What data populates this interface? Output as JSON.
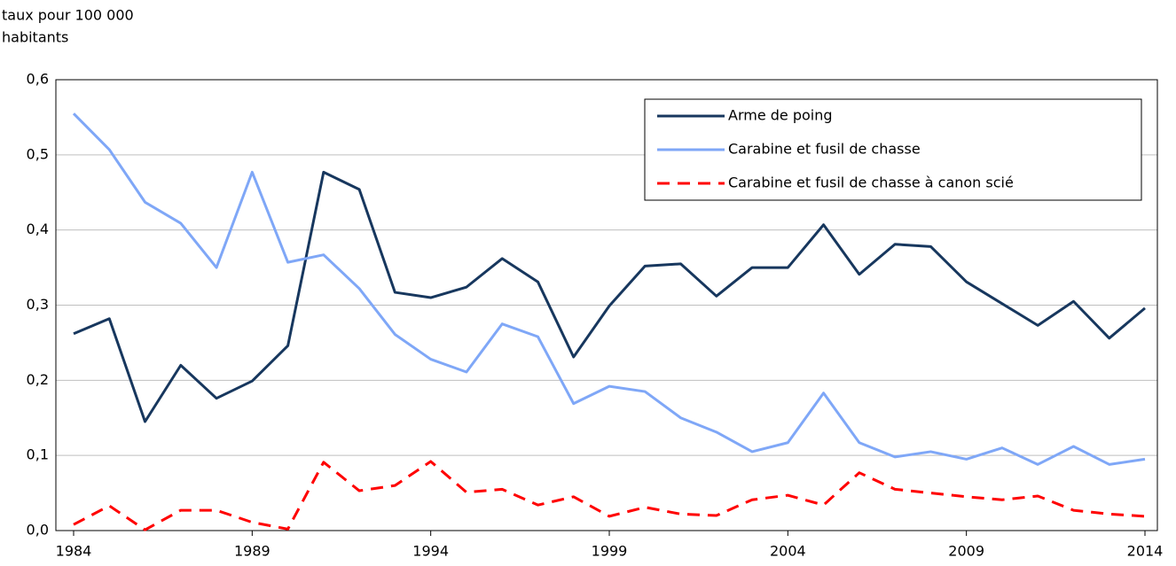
{
  "chart_data": {
    "type": "line",
    "ylabel": [
      "taux pour 100 000",
      "habitants"
    ],
    "x": [
      1984,
      1985,
      1986,
      1987,
      1988,
      1989,
      1990,
      1991,
      1992,
      1993,
      1994,
      1995,
      1996,
      1997,
      1998,
      1999,
      2000,
      2001,
      2002,
      2003,
      2004,
      2005,
      2006,
      2007,
      2008,
      2009,
      2010,
      2011,
      2012,
      2013,
      2014
    ],
    "xlim": [
      1984,
      2014
    ],
    "xticks": [
      1984,
      1989,
      1994,
      1999,
      2004,
      2009,
      2014
    ],
    "ylim": [
      0,
      0.6
    ],
    "yticks": [
      {
        "value": 0,
        "label": "0,0"
      },
      {
        "value": 0.1,
        "label": "0,1"
      },
      {
        "value": 0.2,
        "label": "0,2"
      },
      {
        "value": 0.3,
        "label": "0,3"
      },
      {
        "value": 0.4,
        "label": "0,4"
      },
      {
        "value": 0.5,
        "label": "0,5"
      },
      {
        "value": 0.6,
        "label": "0,6"
      }
    ],
    "grid": true,
    "legend": "top-right",
    "series": [
      {
        "name": "Arme de poing",
        "color": "#17375e",
        "style": "solid",
        "values": [
          0.262,
          0.282,
          0.145,
          0.22,
          0.176,
          0.199,
          0.246,
          0.477,
          0.454,
          0.317,
          0.31,
          0.324,
          0.362,
          0.331,
          0.231,
          0.299,
          0.352,
          0.355,
          0.312,
          0.35,
          0.35,
          0.407,
          0.341,
          0.381,
          0.378,
          0.331,
          0.302,
          0.273,
          0.305,
          0.256,
          0.296
        ]
      },
      {
        "name": "Carabine et fusil de chasse",
        "color": "#7fa7f7",
        "style": "solid",
        "values": [
          0.555,
          0.507,
          0.437,
          0.409,
          0.35,
          0.477,
          0.357,
          0.367,
          0.322,
          0.261,
          0.228,
          0.211,
          0.275,
          0.258,
          0.169,
          0.192,
          0.185,
          0.15,
          0.131,
          0.105,
          0.117,
          0.183,
          0.117,
          0.098,
          0.105,
          0.095,
          0.11,
          0.088,
          0.112,
          0.088,
          0.095
        ]
      },
      {
        "name": "Carabine et fusil de chasse à canon scié",
        "color": "#ff0000",
        "style": "dashed",
        "values": [
          0.008,
          0.033,
          0.001,
          0.027,
          0.027,
          0.011,
          0.002,
          0.091,
          0.053,
          0.06,
          0.092,
          0.051,
          0.055,
          0.034,
          0.045,
          0.019,
          0.031,
          0.022,
          0.02,
          0.041,
          0.047,
          0.034,
          0.077,
          0.055,
          0.05,
          0.045,
          0.041,
          0.046,
          0.027,
          0.022,
          0.019
        ]
      }
    ]
  }
}
